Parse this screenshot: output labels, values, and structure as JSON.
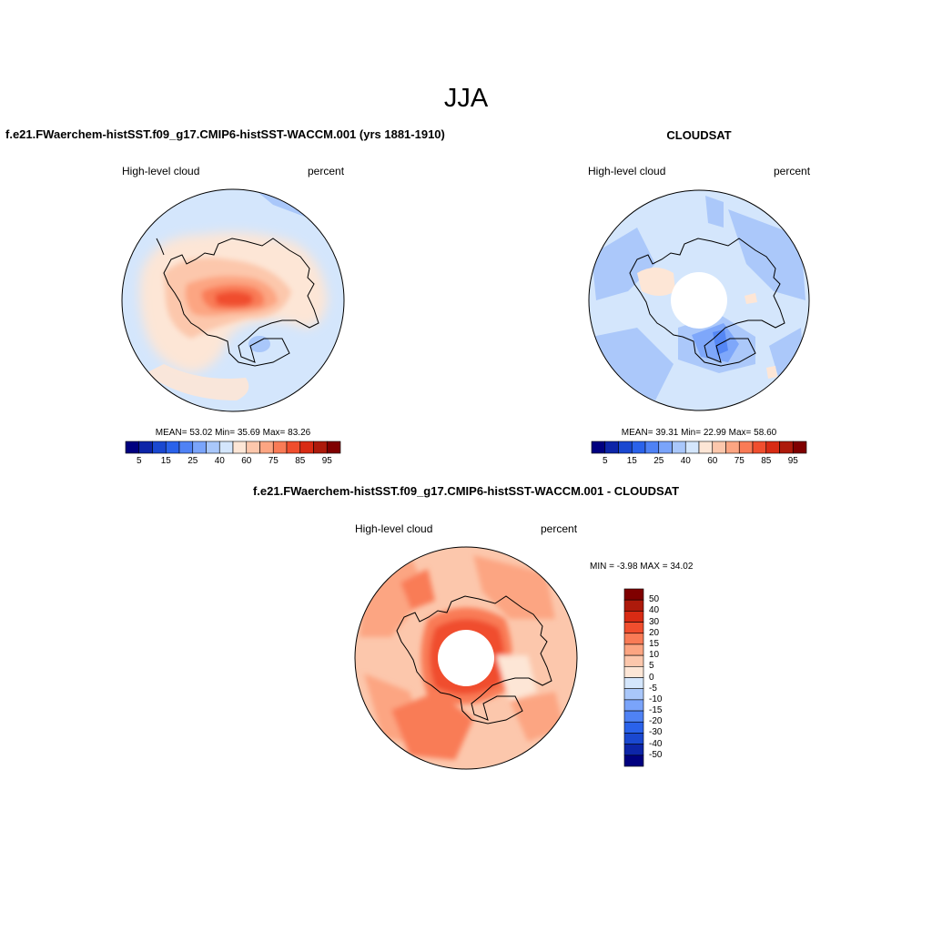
{
  "main_title": "JJA",
  "panels": {
    "model": {
      "title": "f.e21.FWaerchem-histSST.f09_g17.CMIP6-histSST-WACCM.001 (yrs 1881-1910)",
      "left_label": "High-level cloud",
      "right_label": "percent",
      "stats": "MEAN=  53.02  Min=  35.69  Max=  83.26"
    },
    "obs": {
      "title": "CLOUDSAT",
      "left_label": "High-level cloud",
      "right_label": "percent",
      "stats": "MEAN=  39.31  Min=  22.99  Max=  58.60"
    },
    "diff": {
      "title": "f.e21.FWaerchem-histSST.f09_g17.CMIP6-histSST-WACCM.001 - CLOUDSAT",
      "left_label": "High-level cloud",
      "right_label": "percent",
      "stats": "MIN =  -3.98 MAX =  34.02"
    }
  },
  "chart_data": [
    {
      "type": "heatmap",
      "title": "f.e21.FWaerchem-histSST.f09_g17.CMIP6-histSST-WACCM.001 (yrs 1881-1910)",
      "variable": "High-level cloud",
      "units": "percent",
      "projection": "south polar stereographic",
      "mean": 53.02,
      "min": 35.69,
      "max": 83.26,
      "colorbar_levels": [
        5,
        10,
        15,
        20,
        25,
        30,
        40,
        50,
        60,
        70,
        75,
        80,
        85,
        90,
        95
      ],
      "colorbar_tick_labels": [
        "5",
        "15",
        "25",
        "40",
        "60",
        "75",
        "85",
        "95"
      ],
      "colorbar_colors": [
        "#00007f",
        "#0d25a8",
        "#1a48d0",
        "#2a62ea",
        "#4f82f5",
        "#7aa4fa",
        "#a9c7fa",
        "#d4e6fc",
        "#fde6d6",
        "#fcc7ac",
        "#fca582",
        "#f97b56",
        "#f04e2e",
        "#d82b14",
        "#ad1a0b",
        "#7f0000"
      ]
    },
    {
      "type": "heatmap",
      "title": "CLOUDSAT",
      "variable": "High-level cloud",
      "units": "percent",
      "projection": "south polar stereographic",
      "mean": 39.31,
      "min": 22.99,
      "max": 58.6,
      "colorbar_levels": [
        5,
        10,
        15,
        20,
        25,
        30,
        40,
        50,
        60,
        70,
        75,
        80,
        85,
        90,
        95
      ],
      "colorbar_tick_labels": [
        "5",
        "15",
        "25",
        "40",
        "60",
        "75",
        "85",
        "95"
      ],
      "colorbar_colors": [
        "#00007f",
        "#0d25a8",
        "#1a48d0",
        "#2a62ea",
        "#4f82f5",
        "#7aa4fa",
        "#a9c7fa",
        "#d4e6fc",
        "#fde6d6",
        "#fcc7ac",
        "#fca582",
        "#f97b56",
        "#f04e2e",
        "#d82b14",
        "#ad1a0b",
        "#7f0000"
      ]
    },
    {
      "type": "heatmap",
      "title": "f.e21.FWaerchem-histSST.f09_g17.CMIP6-histSST-WACCM.001 - CLOUDSAT",
      "variable": "High-level cloud",
      "units": "percent",
      "projection": "south polar stereographic",
      "min": -3.98,
      "max": 34.02,
      "colorbar_levels": [
        50,
        40,
        30,
        20,
        15,
        10,
        5,
        0,
        -5,
        -10,
        -15,
        -20,
        -30,
        -40,
        -50
      ],
      "colorbar_colors": [
        "#7f0000",
        "#ad1a0b",
        "#d82b14",
        "#f04e2e",
        "#f97b56",
        "#fca582",
        "#fcc7ac",
        "#fde6d6",
        "#d4e6fc",
        "#a9c7fa",
        "#7aa4fa",
        "#4f82f5",
        "#2a62ea",
        "#1a48d0",
        "#0d25a8",
        "#00007f"
      ]
    }
  ]
}
